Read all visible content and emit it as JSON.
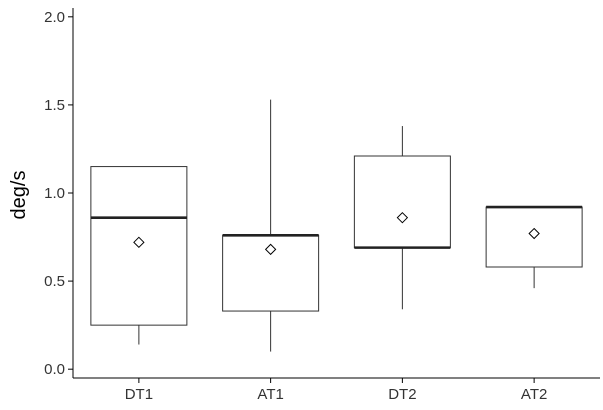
{
  "chart_data": {
    "type": "box",
    "title": "",
    "xlabel": "",
    "ylabel": "deg/s",
    "ylim": [
      -0.05,
      2.05
    ],
    "yticks": [
      0.0,
      0.5,
      1.0,
      1.5,
      2.0
    ],
    "ytick_labels": [
      "0.0",
      "0.5",
      "1.0",
      "1.5",
      "2.0"
    ],
    "categories": [
      "DT1",
      "AT1",
      "DT2",
      "AT2"
    ],
    "boxes": [
      {
        "category": "DT1",
        "whisker_low": 0.14,
        "q1": 0.25,
        "median": 0.86,
        "q3": 1.15,
        "whisker_high": 1.15,
        "mean": 0.72
      },
      {
        "category": "AT1",
        "whisker_low": 0.1,
        "q1": 0.33,
        "median": 0.76,
        "q3": 0.76,
        "whisker_high": 1.53,
        "mean": 0.68
      },
      {
        "category": "DT2",
        "whisker_low": 0.34,
        "q1": 0.69,
        "median": 0.69,
        "q3": 1.21,
        "whisker_high": 1.38,
        "mean": 0.86
      },
      {
        "category": "AT2",
        "whisker_low": 0.46,
        "q1": 0.58,
        "median": 0.92,
        "q3": 0.92,
        "whisker_high": 0.92,
        "mean": 0.77
      }
    ],
    "grid": false,
    "legend": "none"
  }
}
